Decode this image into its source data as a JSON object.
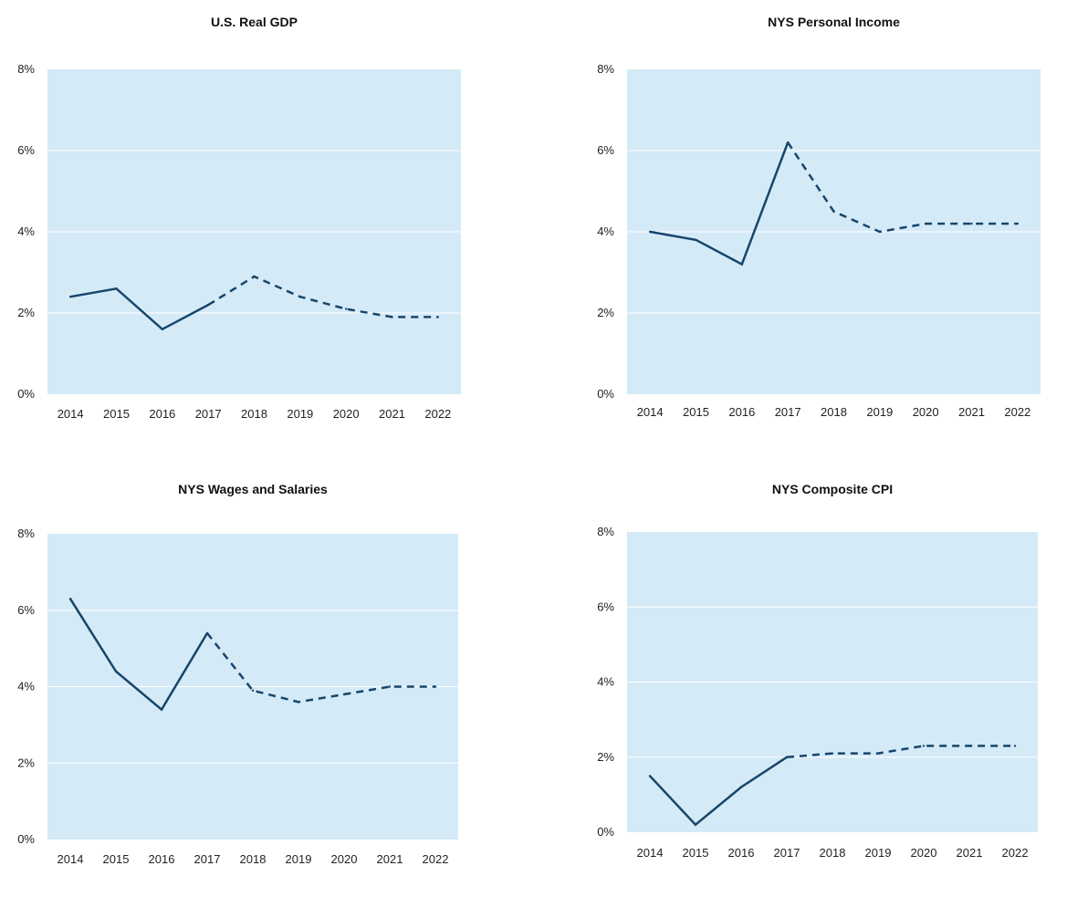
{
  "colors": {
    "plot_bg": "#d4eaf7",
    "grid": "#ffffff",
    "line": "#17456b"
  },
  "chart_data": [
    {
      "type": "line",
      "title": "U.S. Real GDP",
      "x": [
        "2014",
        "2015",
        "2016",
        "2017",
        "2018",
        "2019",
        "2020",
        "2021",
        "2022"
      ],
      "values": [
        2.4,
        2.6,
        1.6,
        2.2,
        2.9,
        2.4,
        2.1,
        1.9,
        1.9
      ],
      "solid_through": "2017",
      "dashed_from": "2017",
      "ylim": [
        0,
        8
      ],
      "yticks": [
        "0%",
        "2%",
        "4%",
        "6%",
        "8%"
      ],
      "grid": true,
      "legend": false
    },
    {
      "type": "line",
      "title": "NYS Personal Income",
      "x": [
        "2014",
        "2015",
        "2016",
        "2017",
        "2018",
        "2019",
        "2020",
        "2021",
        "2022"
      ],
      "values": [
        4.0,
        3.8,
        3.2,
        6.2,
        4.5,
        4.0,
        4.2,
        4.2,
        4.2
      ],
      "solid_through": "2017",
      "dashed_from": "2017",
      "ylim": [
        0,
        8
      ],
      "yticks": [
        "0%",
        "2%",
        "4%",
        "6%",
        "8%"
      ],
      "grid": true,
      "legend": false
    },
    {
      "type": "line",
      "title": "NYS Wages and Salaries",
      "x": [
        "2014",
        "2015",
        "2016",
        "2017",
        "2018",
        "2019",
        "2020",
        "2021",
        "2022"
      ],
      "values": [
        6.3,
        4.4,
        3.4,
        5.4,
        3.9,
        3.6,
        3.8,
        4.0,
        4.0
      ],
      "solid_through": "2017",
      "dashed_from": "2017",
      "ylim": [
        0,
        8
      ],
      "yticks": [
        "0%",
        "2%",
        "4%",
        "6%",
        "8%"
      ],
      "grid": true,
      "legend": false
    },
    {
      "type": "line",
      "title": "NYS Composite CPI",
      "x": [
        "2014",
        "2015",
        "2016",
        "2017",
        "2018",
        "2019",
        "2020",
        "2021",
        "2022"
      ],
      "values": [
        1.5,
        0.2,
        1.2,
        2.0,
        2.1,
        2.1,
        2.3,
        2.3,
        2.3
      ],
      "solid_through": "2017",
      "dashed_from": "2017",
      "ylim": [
        0,
        8
      ],
      "yticks": [
        "0%",
        "2%",
        "4%",
        "6%",
        "8%"
      ],
      "grid": true,
      "legend": false
    }
  ]
}
